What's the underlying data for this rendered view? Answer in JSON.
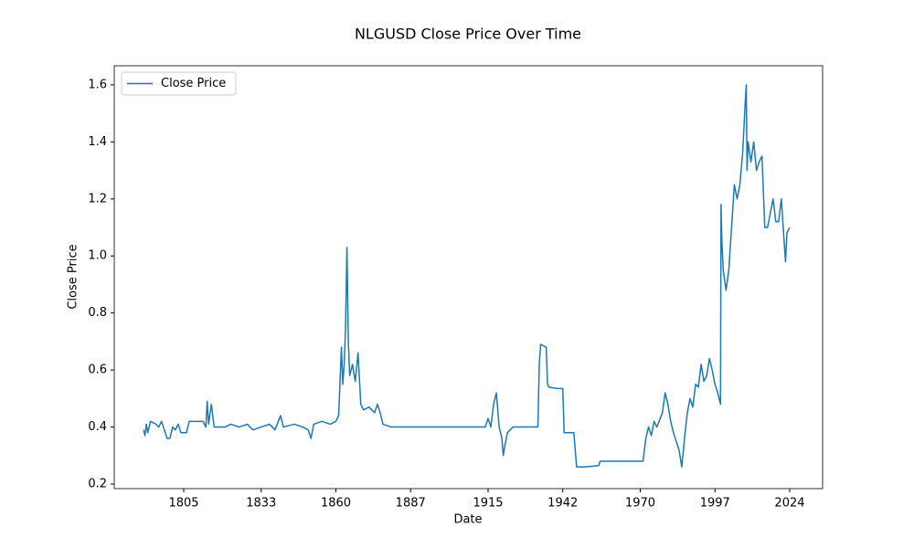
{
  "chart_data": {
    "type": "line",
    "title": "NLGUSD Close Price Over Time",
    "xlabel": "Date",
    "ylabel": "Close Price",
    "x": [
      1790.5,
      1791,
      1791.5,
      1792,
      1793,
      1795,
      1796,
      1797,
      1798,
      1799,
      1800,
      1801,
      1802,
      1803,
      1804,
      1806,
      1807,
      1812,
      1813,
      1813.5,
      1814,
      1815,
      1816,
      1818,
      1820,
      1822,
      1825,
      1828,
      1830,
      1833,
      1836,
      1838,
      1840,
      1841,
      1845,
      1848,
      1850,
      1851,
      1852,
      1855,
      1858,
      1860,
      1861,
      1862,
      1862.5,
      1863,
      1863.5,
      1864,
      1864.5,
      1865,
      1866,
      1867,
      1868,
      1869,
      1870,
      1872,
      1874,
      1875,
      1876,
      1877,
      1880,
      1890,
      1900,
      1910,
      1914,
      1915,
      1916,
      1917,
      1918,
      1919,
      1920,
      1920.5,
      1921,
      1922,
      1924,
      1926,
      1928,
      1933,
      1933.5,
      1934,
      1936,
      1936.5,
      1937,
      1940,
      1942,
      1942.5,
      1946,
      1947,
      1950,
      1955,
      1955.5,
      1961,
      1967,
      1971,
      1972,
      1973,
      1974,
      1975,
      1976,
      1978,
      1979,
      1980,
      1981,
      1982,
      1984,
      1985,
      1986,
      1987,
      1988,
      1989,
      1990,
      1991,
      1992,
      1993,
      1994,
      1995,
      1996,
      1997,
      1998,
      1999,
      1999.2,
      1999.5,
      2000,
      2001,
      2002,
      2003,
      2004,
      2005,
      2006,
      2007,
      2008,
      2008.3,
      2008.6,
      2009,
      2010,
      2011,
      2012,
      2013,
      2014,
      2015,
      2016,
      2017,
      2018,
      2019,
      2020,
      2021,
      2022,
      2022.5,
      2023,
      2024
    ],
    "series": [
      {
        "name": "Close Price",
        "color": "#1f77b4",
        "values": [
          0.39,
          0.37,
          0.41,
          0.38,
          0.42,
          0.41,
          0.4,
          0.42,
          0.39,
          0.36,
          0.36,
          0.4,
          0.39,
          0.41,
          0.38,
          0.38,
          0.42,
          0.42,
          0.4,
          0.49,
          0.41,
          0.48,
          0.4,
          0.4,
          0.4,
          0.41,
          0.4,
          0.41,
          0.39,
          0.4,
          0.41,
          0.39,
          0.44,
          0.4,
          0.41,
          0.4,
          0.39,
          0.36,
          0.41,
          0.42,
          0.41,
          0.42,
          0.44,
          0.68,
          0.55,
          0.62,
          0.75,
          1.03,
          0.7,
          0.58,
          0.62,
          0.56,
          0.66,
          0.48,
          0.46,
          0.47,
          0.45,
          0.48,
          0.45,
          0.41,
          0.4,
          0.4,
          0.4,
          0.4,
          0.4,
          0.43,
          0.4,
          0.48,
          0.52,
          0.4,
          0.36,
          0.3,
          0.33,
          0.38,
          0.4,
          0.4,
          0.4,
          0.4,
          0.62,
          0.69,
          0.68,
          0.55,
          0.54,
          0.535,
          0.535,
          0.38,
          0.38,
          0.26,
          0.26,
          0.265,
          0.28,
          0.28,
          0.28,
          0.28,
          0.36,
          0.4,
          0.37,
          0.42,
          0.4,
          0.45,
          0.52,
          0.48,
          0.42,
          0.38,
          0.32,
          0.26,
          0.36,
          0.45,
          0.5,
          0.47,
          0.55,
          0.54,
          0.62,
          0.56,
          0.58,
          0.64,
          0.6,
          0.55,
          0.52,
          0.48,
          1.18,
          1.05,
          0.95,
          0.88,
          0.95,
          1.1,
          1.25,
          1.2,
          1.25,
          1.36,
          1.55,
          1.6,
          1.3,
          1.4,
          1.33,
          1.4,
          1.3,
          1.33,
          1.35,
          1.1,
          1.1,
          1.15,
          1.2,
          1.12,
          1.12,
          1.2,
          1.05,
          0.98,
          1.08,
          1.1
        ]
      }
    ],
    "xlim": [
      1779.9,
      2035.9
    ],
    "xticks": [
      1805,
      1833,
      1860,
      1887,
      1915,
      1942,
      1970,
      1997,
      2024
    ],
    "ylim": [
      0.184,
      1.667
    ],
    "yticks": [
      0.2,
      0.4,
      0.6,
      0.8,
      {
        "value": 1,
        "label": "1.0"
      },
      1.2,
      1.4,
      1.6
    ],
    "legend": "upper left"
  }
}
